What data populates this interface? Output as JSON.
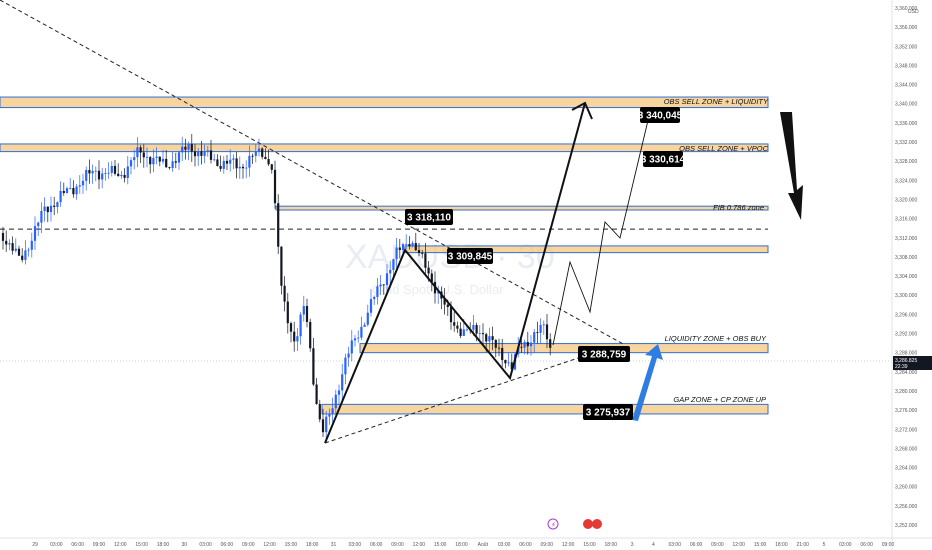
{
  "chart_data": {
    "type": "candlestick",
    "currency": "USD",
    "symbol_watermark": "XAUUSD · 30",
    "watermark_sub": "Gold Spot / U.S. Dollar",
    "y_ticks": [
      3252,
      3256,
      3260,
      3264,
      3268,
      3272,
      3276,
      3280,
      3284,
      3288,
      3292,
      3296,
      3300,
      3304,
      3308,
      3312,
      3316,
      3320,
      3324,
      3328,
      3332,
      3336,
      3340,
      3344,
      3348,
      3352,
      3356,
      3360
    ],
    "y_tick_labels": [
      "3,252.000",
      "3,256.000",
      "3,260.000",
      "3,264.000",
      "3,268.000",
      "3,272.000",
      "3,276.000",
      "3,280.000",
      "3,284.000",
      "3,288.000",
      "3,292.000",
      "3,296.000",
      "3,300.000",
      "3,304.000",
      "3,308.000",
      "3,312.000",
      "3,316.000",
      "3,320.000",
      "3,324.000",
      "3,328.000",
      "3,332.000",
      "3,336.000",
      "3,340.000",
      "3,344.000",
      "3,348.000",
      "3,352.000",
      "3,356.000",
      "3,360.000"
    ],
    "x_tick_labels": [
      "29",
      "03:00",
      "06:00",
      "09:00",
      "12:00",
      "15:00",
      "18:00",
      "30",
      "03:00",
      "06:00",
      "09:00",
      "12:00",
      "15:00",
      "18:00",
      "31",
      "03:00",
      "06:00",
      "09:00",
      "12:00",
      "15:00",
      "18:00",
      "Août",
      "03:00",
      "06:00",
      "09:00",
      "12:00",
      "15:00",
      "18:00",
      "3",
      "4",
      "03:00",
      "06:00",
      "09:00",
      "12:00",
      "15:00",
      "18:00",
      "21:00",
      "5",
      "03:00",
      "06:00",
      "09:00"
    ],
    "current_price": "3,286.825",
    "current_time": "22:39",
    "zones": [
      {
        "label": "OBS SELL ZONE + LIQUIDITY",
        "price": "3 340,045",
        "low": 3339.2,
        "high": 3341.4
      },
      {
        "label": "OBS SELL ZONE + VPOC",
        "price": "3 330,614",
        "low": 3330.0,
        "high": 3331.6
      },
      {
        "label": "FIB 0.786 zone",
        "price": "3 318,110",
        "low": 3317.8,
        "high": 3318.6
      },
      {
        "label": "",
        "price": "3 309,845",
        "low": 3308.9,
        "high": 3310.3
      },
      {
        "label": "LIQUIDITY ZONE + OBS BUY",
        "price": "3 288,759",
        "low": 3288.0,
        "high": 3289.9
      },
      {
        "label": "GAP ZONE + CP ZONE UP",
        "price": "3 275,937",
        "low": 3275.2,
        "high": 3277.2
      }
    ],
    "dashed_level": 3313.8,
    "colors": {
      "bull": "#2962ff",
      "bear": "#131722",
      "zone_fill": "#f5c77e",
      "zone_border": "#2f6fd6",
      "label_bg": "#000000",
      "arrow_blue": "#2f7de1"
    },
    "grid": false
  }
}
